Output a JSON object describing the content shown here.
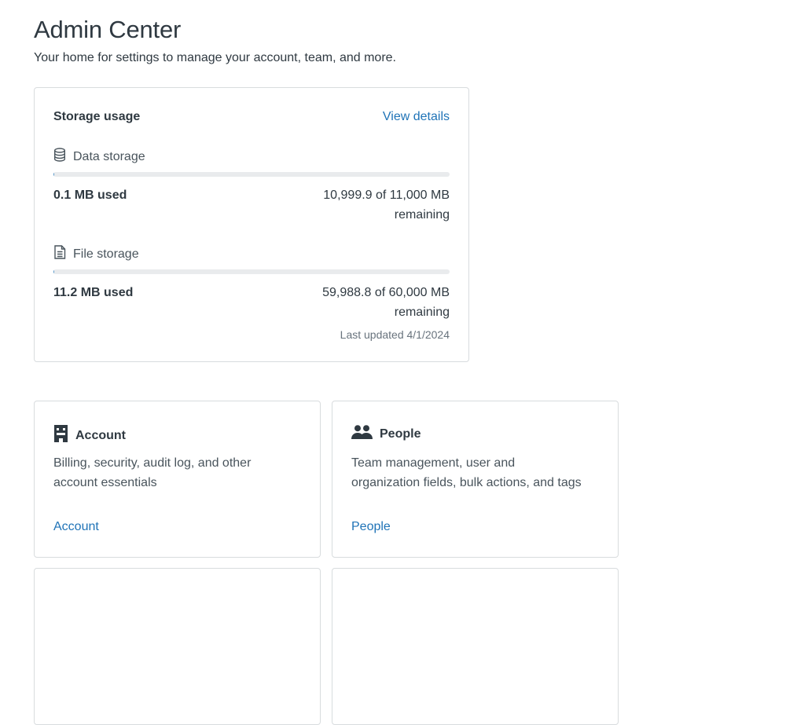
{
  "header": {
    "title": "Admin Center",
    "subtitle": "Your home for settings to manage your account, team, and more."
  },
  "storage": {
    "title": "Storage usage",
    "view_details": "View details",
    "data": {
      "label": "Data storage",
      "icon": "database-icon",
      "used": "0.1 MB used",
      "remaining": "10,999.9 of 11,000 MB remaining",
      "fraction_used": 9.1e-06
    },
    "file": {
      "label": "File storage",
      "icon": "document-icon",
      "used": "11.2 MB used",
      "remaining": "59,988.8 of 60,000 MB remaining",
      "fraction_used": 0.00019
    },
    "last_updated": "Last updated 4/1/2024"
  },
  "tiles": [
    {
      "title": "Account",
      "icon": "building-icon",
      "description": "Billing, security, audit log, and other account essentials",
      "link": "Account"
    },
    {
      "title": "People",
      "icon": "people-icon",
      "description": "Team management, user and organization fields, bulk actions, and tags",
      "link": "People"
    }
  ],
  "colors": {
    "link": "#1f73b7",
    "text": "#2f3941",
    "border": "#d8dcde",
    "bar_track": "#e9ebed"
  }
}
